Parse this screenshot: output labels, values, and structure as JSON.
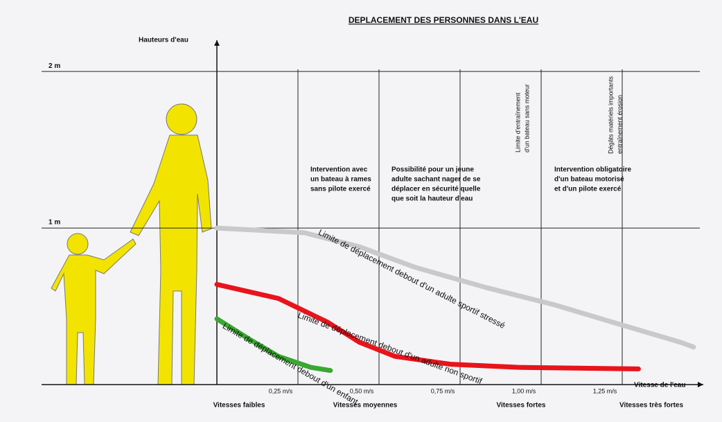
{
  "chart_data": {
    "type": "line",
    "title": "DEPLACEMENT DES PERSONNES DANS L'EAU",
    "y_label": "Hauteurs d'eau",
    "x_label": "Vitesse de l'eau",
    "xlim": [
      0,
      1.5
    ],
    "ylim": [
      0,
      2.2
    ],
    "xticks": [
      {
        "value": 0.25,
        "label": "0,25 m/s"
      },
      {
        "value": 0.5,
        "label": "0,50 m/s"
      },
      {
        "value": 0.75,
        "label": "0,75 m/s"
      },
      {
        "value": 1.0,
        "label": "1,00 m/s"
      },
      {
        "value": 1.25,
        "label": "1,25 m/s"
      }
    ],
    "yticks": [
      {
        "value": 1,
        "label": "1 m"
      },
      {
        "value": 2,
        "label": "2 m"
      }
    ],
    "grid": true,
    "series": [
      {
        "name": "Limite de déplacement debout d'un adulte sportif stressé",
        "color": "#c9c9c9",
        "x": [
          0,
          0.27,
          0.44,
          0.61,
          0.83,
          1.04,
          1.25,
          1.43,
          1.47
        ],
        "values": [
          1.0,
          0.97,
          0.88,
          0.75,
          0.62,
          0.51,
          0.38,
          0.27,
          0.24
        ]
      },
      {
        "name": "Limite de déplacement debout d'un adulte non sportif",
        "color": "#e8141c",
        "x": [
          0,
          0.19,
          0.34,
          0.44,
          0.55,
          0.72,
          0.93,
          1.3
        ],
        "values": [
          0.64,
          0.55,
          0.4,
          0.27,
          0.18,
          0.13,
          0.11,
          0.1
        ]
      },
      {
        "name": "Limite de déplacement debout d'un enfant",
        "color": "#3aa832",
        "x": [
          0,
          0.1,
          0.19,
          0.29,
          0.35
        ],
        "values": [
          0.42,
          0.29,
          0.18,
          0.11,
          0.09
        ]
      }
    ],
    "speed_zones": [
      "Vitesses faibles",
      "Vitesses moyennes",
      "Vitesses fortes",
      "Vitesses très fortes"
    ],
    "annotations": [
      {
        "lines": [
          "Intervention avec",
          "un bateau à rames",
          "sans pilote exercé"
        ]
      },
      {
        "lines": [
          "Possibilité pour un jeune",
          "adulte sachant nager de se",
          "déplacer en sécurité quelle",
          "que soit la hauteur d'eau"
        ]
      },
      {
        "lines": [
          "Intervention obligatoire",
          "d'un bateau motorisé",
          "et d'un pilote exercé"
        ]
      }
    ],
    "vertical_annotations": [
      {
        "lines": [
          "Limite d'entraînement",
          "d'un bateau sans moteur"
        ]
      },
      {
        "lines": [
          "Dégâts matériels importants",
          "entraînement érosion"
        ]
      }
    ]
  }
}
